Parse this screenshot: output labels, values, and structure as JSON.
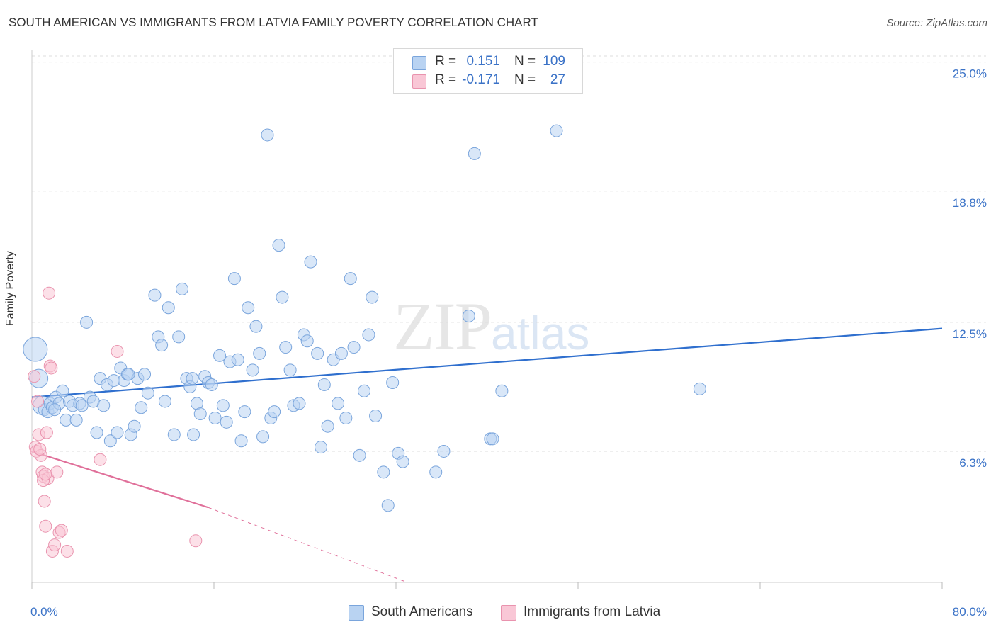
{
  "title": "SOUTH AMERICAN VS IMMIGRANTS FROM LATVIA FAMILY POVERTY CORRELATION CHART",
  "source": "Source: ZipAtlas.com",
  "watermark": {
    "part1": "ZIP",
    "part2": "atlas"
  },
  "legend_top": [
    {
      "r_label": "R =",
      "r_value": "0.151",
      "n_label": "N =",
      "n_value": "109",
      "color": "#b9d3f2",
      "border": "#7aa5dc"
    },
    {
      "r_label": "R =",
      "r_value": "-0.171",
      "n_label": "N =",
      "n_value": "27",
      "color": "#f9c7d6",
      "border": "#e993ae"
    }
  ],
  "legend_bottom": [
    {
      "label": "South Americans",
      "color": "#b9d3f2",
      "border": "#7aa5dc"
    },
    {
      "label": "Immigrants from Latvia",
      "color": "#f9c7d6",
      "border": "#e993ae"
    }
  ],
  "chart_data": {
    "type": "scatter",
    "xlabel": "",
    "ylabel": "Family Poverty",
    "xlim": [
      0,
      80
    ],
    "ylim": [
      0,
      25.6
    ],
    "x_tick_labels": [
      {
        "value": 0,
        "label": "0.0%"
      },
      {
        "value": 80,
        "label": "80.0%"
      }
    ],
    "y_tick_labels": [
      {
        "value": 6.3,
        "label": "6.3%"
      },
      {
        "value": 12.5,
        "label": "12.5%"
      },
      {
        "value": 18.8,
        "label": "18.8%"
      },
      {
        "value": 25.0,
        "label": "25.0%"
      }
    ],
    "grid": true,
    "series": [
      {
        "name": "South Americans",
        "color": "#7aa5dc",
        "fill": "#b9d3f2",
        "trend": {
          "x": [
            0,
            80
          ],
          "y": [
            8.9,
            12.2
          ],
          "color": "#2f6fce"
        },
        "points": [
          [
            0.3,
            11.2
          ],
          [
            0.6,
            9.8
          ],
          [
            0.9,
            8.5
          ],
          [
            1.1,
            8.3
          ],
          [
            1.4,
            8.2
          ],
          [
            1.6,
            8.6
          ],
          [
            1.8,
            8.4
          ],
          [
            2.1,
            8.9
          ],
          [
            2.4,
            8.6
          ],
          [
            2.7,
            9.2
          ],
          [
            3.0,
            7.8
          ],
          [
            3.3,
            8.7
          ],
          [
            3.6,
            8.5
          ],
          [
            3.9,
            7.8
          ],
          [
            4.2,
            8.6
          ],
          [
            4.4,
            8.5
          ],
          [
            4.8,
            12.5
          ],
          [
            5.1,
            8.9
          ],
          [
            5.4,
            8.7
          ],
          [
            5.7,
            7.2
          ],
          [
            6.0,
            9.8
          ],
          [
            6.3,
            8.5
          ],
          [
            6.6,
            9.5
          ],
          [
            6.9,
            6.8
          ],
          [
            7.2,
            9.7
          ],
          [
            7.5,
            7.2
          ],
          [
            7.8,
            10.3
          ],
          [
            8.1,
            9.7
          ],
          [
            8.4,
            10.0
          ],
          [
            8.7,
            7.1
          ],
          [
            9.0,
            7.5
          ],
          [
            9.3,
            9.8
          ],
          [
            9.6,
            8.4
          ],
          [
            9.9,
            10.0
          ],
          [
            10.2,
            9.1
          ],
          [
            10.8,
            13.8
          ],
          [
            11.1,
            11.8
          ],
          [
            11.4,
            11.4
          ],
          [
            11.7,
            8.7
          ],
          [
            12.0,
            13.2
          ],
          [
            12.5,
            7.1
          ],
          [
            12.9,
            11.8
          ],
          [
            13.2,
            14.1
          ],
          [
            13.6,
            9.8
          ],
          [
            13.9,
            9.4
          ],
          [
            14.2,
            7.1
          ],
          [
            14.5,
            8.6
          ],
          [
            14.8,
            8.1
          ],
          [
            15.2,
            9.9
          ],
          [
            15.5,
            9.6
          ],
          [
            15.8,
            9.5
          ],
          [
            16.1,
            7.9
          ],
          [
            16.5,
            10.9
          ],
          [
            16.8,
            8.5
          ],
          [
            17.1,
            7.7
          ],
          [
            17.4,
            10.6
          ],
          [
            17.8,
            14.6
          ],
          [
            18.1,
            10.7
          ],
          [
            18.4,
            6.8
          ],
          [
            18.7,
            8.2
          ],
          [
            19.0,
            13.2
          ],
          [
            19.4,
            10.2
          ],
          [
            19.7,
            12.3
          ],
          [
            20.0,
            11.0
          ],
          [
            20.3,
            7.0
          ],
          [
            20.7,
            21.5
          ],
          [
            21.0,
            7.9
          ],
          [
            21.3,
            8.2
          ],
          [
            21.7,
            16.2
          ],
          [
            22.0,
            13.7
          ],
          [
            22.3,
            11.3
          ],
          [
            22.7,
            10.2
          ],
          [
            23.0,
            8.5
          ],
          [
            23.5,
            8.6
          ],
          [
            23.9,
            11.9
          ],
          [
            24.2,
            11.6
          ],
          [
            24.5,
            15.4
          ],
          [
            25.1,
            11.0
          ],
          [
            25.4,
            6.5
          ],
          [
            25.7,
            9.5
          ],
          [
            26.0,
            7.5
          ],
          [
            26.5,
            10.7
          ],
          [
            26.9,
            8.6
          ],
          [
            27.2,
            11.0
          ],
          [
            27.6,
            7.9
          ],
          [
            28.0,
            14.6
          ],
          [
            28.3,
            11.3
          ],
          [
            28.8,
            6.1
          ],
          [
            29.2,
            9.2
          ],
          [
            29.6,
            11.9
          ],
          [
            29.9,
            13.7
          ],
          [
            30.2,
            8.0
          ],
          [
            30.9,
            5.3
          ],
          [
            31.3,
            3.7
          ],
          [
            31.7,
            9.6
          ],
          [
            32.2,
            6.2
          ],
          [
            32.6,
            5.8
          ],
          [
            35.5,
            5.3
          ],
          [
            36.2,
            6.3
          ],
          [
            38.4,
            12.8
          ],
          [
            38.9,
            20.6
          ],
          [
            40.3,
            6.9
          ],
          [
            40.5,
            6.9
          ],
          [
            41.3,
            9.2
          ],
          [
            46.1,
            21.7
          ],
          [
            58.7,
            9.3
          ],
          [
            8.5,
            10.0
          ],
          [
            14.1,
            9.8
          ],
          [
            2.0,
            8.3
          ]
        ],
        "sizes_note": "larger bubbles near the origin",
        "big_points": [
          [
            0.3,
            11.2
          ],
          [
            0.6,
            9.8
          ],
          [
            0.9,
            8.5
          ]
        ]
      },
      {
        "name": "Immigrants from Latvia",
        "color": "#e993ae",
        "fill": "#f9c7d6",
        "trend": {
          "x": [
            0,
            15.5
          ],
          "y": [
            6.3,
            3.6
          ],
          "dashed_to": [
            33,
            0
          ],
          "color": "#e0709a"
        },
        "points": [
          [
            0.2,
            9.9
          ],
          [
            0.3,
            6.5
          ],
          [
            0.4,
            6.3
          ],
          [
            0.6,
            7.1
          ],
          [
            0.8,
            6.1
          ],
          [
            0.9,
            5.3
          ],
          [
            1.0,
            5.1
          ],
          [
            1.1,
            3.9
          ],
          [
            1.2,
            2.7
          ],
          [
            1.3,
            7.2
          ],
          [
            1.4,
            5.0
          ],
          [
            1.5,
            13.9
          ],
          [
            1.6,
            10.4
          ],
          [
            1.7,
            10.3
          ],
          [
            1.8,
            1.5
          ],
          [
            2.0,
            1.8
          ],
          [
            2.2,
            5.3
          ],
          [
            2.4,
            2.4
          ],
          [
            2.6,
            2.5
          ],
          [
            3.1,
            1.5
          ],
          [
            6.0,
            5.9
          ],
          [
            7.5,
            11.1
          ],
          [
            14.4,
            2.0
          ],
          [
            0.5,
            8.7
          ],
          [
            0.7,
            6.4
          ],
          [
            1.0,
            4.9
          ],
          [
            1.2,
            5.2
          ]
        ]
      }
    ]
  }
}
